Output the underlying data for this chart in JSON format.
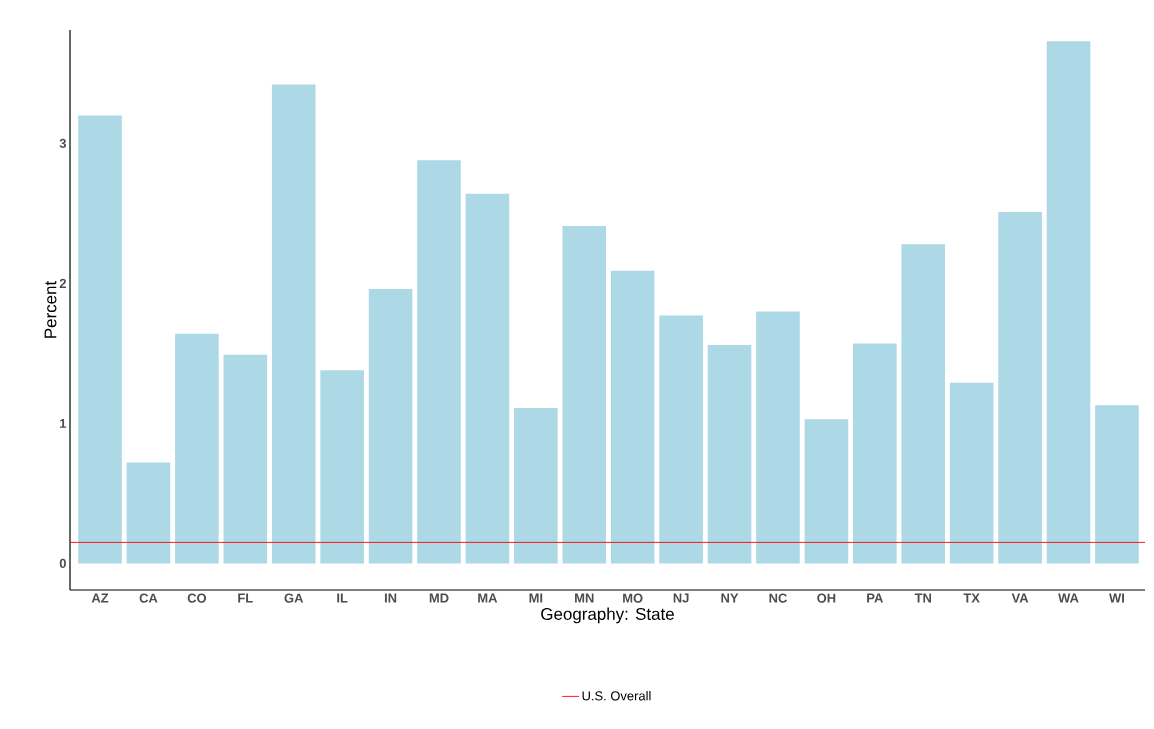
{
  "chart_data": {
    "type": "bar",
    "xlabel": "Geography: State",
    "ylabel": "Percent",
    "categories": [
      "AZ",
      "CA",
      "CO",
      "FL",
      "GA",
      "IL",
      "IN",
      "MD",
      "MA",
      "MI",
      "MN",
      "MO",
      "NJ",
      "NY",
      "NC",
      "OH",
      "PA",
      "TN",
      "TX",
      "VA",
      "WA",
      "WI"
    ],
    "values": [
      3.2,
      0.72,
      1.64,
      1.49,
      3.42,
      1.38,
      1.96,
      2.88,
      2.64,
      1.11,
      2.41,
      2.09,
      1.77,
      1.56,
      1.8,
      1.03,
      1.57,
      2.28,
      1.29,
      2.51,
      3.73,
      1.13
    ],
    "color": "#add8e6",
    "ylim": [
      -0.19,
      3.81
    ],
    "yticks": [
      0,
      1,
      2,
      3
    ],
    "ref_lines": [
      {
        "axis": "y",
        "value": 0.15,
        "label": "U.S. Overall",
        "color": "#ff0000"
      }
    ],
    "legend": "bottom"
  }
}
